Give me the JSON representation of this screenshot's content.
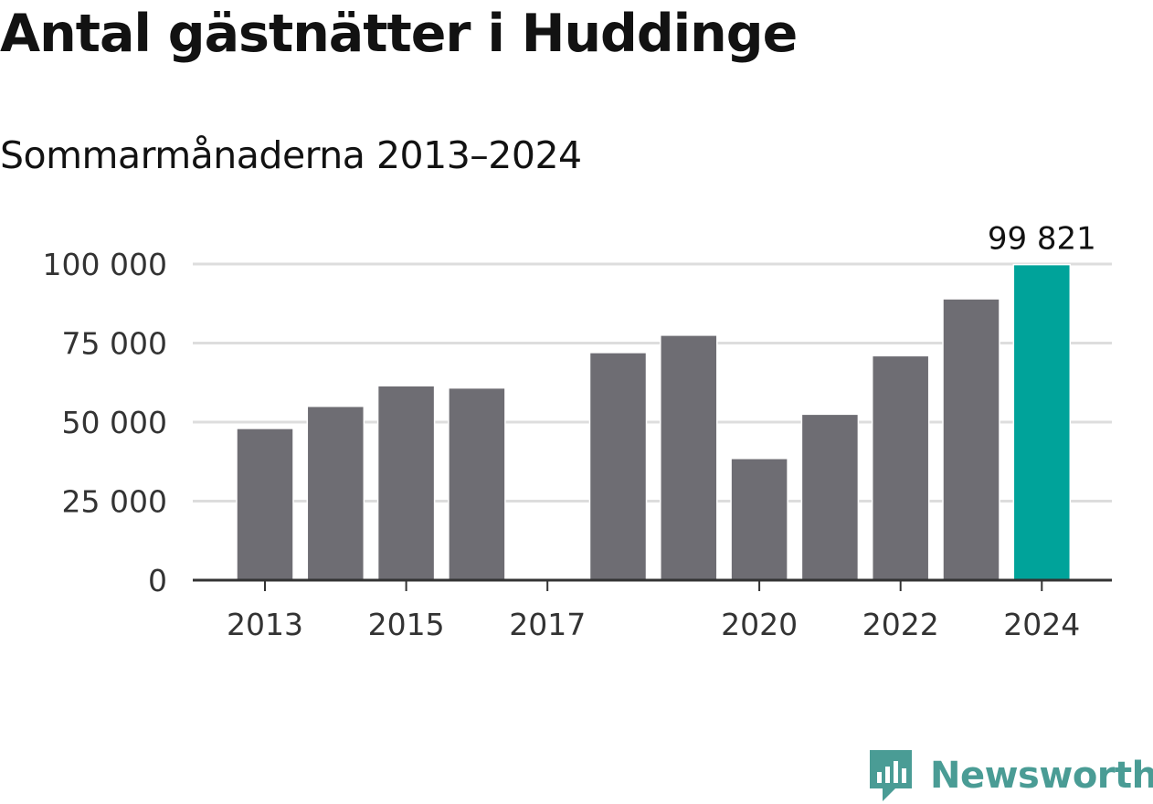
{
  "title": "Antal gästnätter i Huddinge",
  "subtitle": "Sommarmånaderna 2013–2024",
  "brand": {
    "name": "Newsworthy",
    "color": "#4a9c95"
  },
  "colors": {
    "bar": "#6e6d73",
    "highlight": "#00a39a",
    "grid": "#dddddd",
    "axis": "#333333"
  },
  "chart_data": {
    "type": "bar",
    "categories": [
      "2013",
      "2014",
      "2015",
      "2016",
      "2017",
      "2018",
      "2019",
      "2020",
      "2021",
      "2022",
      "2023",
      "2024"
    ],
    "values": [
      48000,
      55000,
      61500,
      60800,
      null,
      72000,
      77500,
      38500,
      52500,
      71000,
      89000,
      99821
    ],
    "highlight_index": 11,
    "highlight_label": "99 821",
    "xticks": [
      "2013",
      "2015",
      "2017",
      "2020",
      "2022",
      "2024"
    ],
    "yticks": [
      0,
      25000,
      50000,
      75000,
      100000
    ],
    "ytick_labels": [
      "0",
      "25 000",
      "50 000",
      "75 000",
      "100 000"
    ],
    "ylim": [
      0,
      100000
    ],
    "grid": true,
    "legend": false
  }
}
